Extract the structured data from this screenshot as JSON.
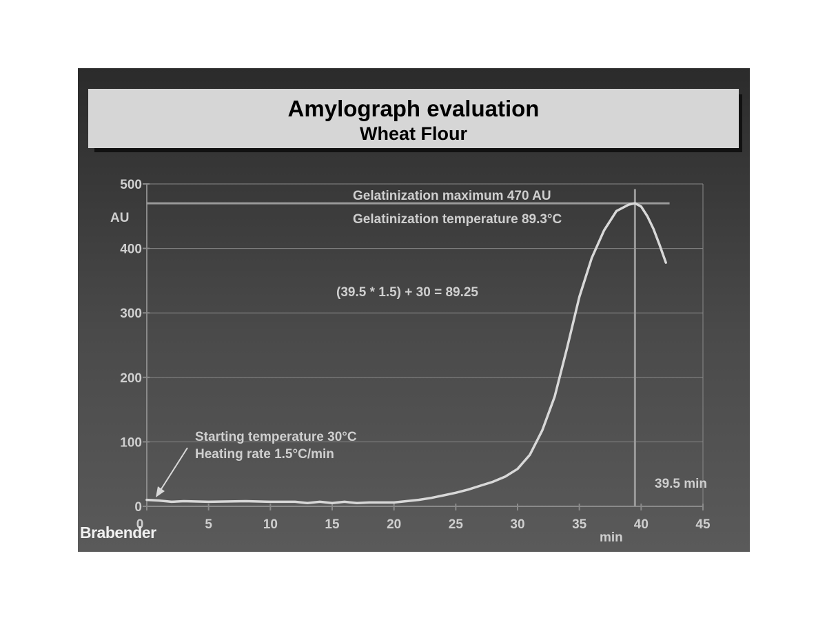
{
  "logo": "Brabender",
  "chart_data": {
    "type": "line",
    "title": "Amylograph evaluation",
    "subtitle": "Wheat Flour",
    "xlabel": "min",
    "ylabel": "AU",
    "xlim": [
      0,
      45
    ],
    "ylim": [
      0,
      500
    ],
    "x_ticks": [
      0,
      5,
      10,
      15,
      20,
      25,
      30,
      35,
      40,
      45
    ],
    "y_ticks": [
      0,
      100,
      200,
      300,
      400,
      500
    ],
    "grid": "horizontal",
    "colors": {
      "background": "#3c3c3c",
      "line": "#d8d8d8",
      "grid": "#8a8a8a",
      "text": "#cfcfcf"
    },
    "x": [
      0,
      1,
      2,
      3,
      5,
      8,
      10,
      12,
      13,
      14,
      15,
      16,
      17,
      18,
      19,
      20,
      21,
      22,
      23,
      24,
      25,
      26,
      27,
      28,
      29,
      30,
      31,
      32,
      33,
      34,
      35,
      36,
      37,
      38,
      39,
      39.5,
      40,
      40.5,
      41,
      41.5,
      42
    ],
    "y": [
      10,
      9,
      7,
      8,
      7,
      8,
      7,
      7,
      5,
      7,
      5,
      7,
      5,
      6,
      6,
      6,
      8,
      10,
      13,
      17,
      21,
      26,
      32,
      38,
      46,
      58,
      80,
      118,
      170,
      245,
      325,
      385,
      428,
      458,
      468,
      470,
      465,
      450,
      430,
      405,
      378
    ],
    "reference_lines": [
      {
        "axis": "y",
        "value": 470
      },
      {
        "axis": "x",
        "value": 39.5
      }
    ],
    "annotations": [
      {
        "text": "Gelatinization maximum 470 AU"
      },
      {
        "text": "Gelatinization temperature 89.3°C"
      },
      {
        "text": "(39.5 * 1.5) + 30 = 89.25"
      },
      {
        "text": "Starting temperature 30°C"
      },
      {
        "text": "Heating rate 1.5°C/min"
      },
      {
        "text": "39.5 min"
      }
    ]
  }
}
